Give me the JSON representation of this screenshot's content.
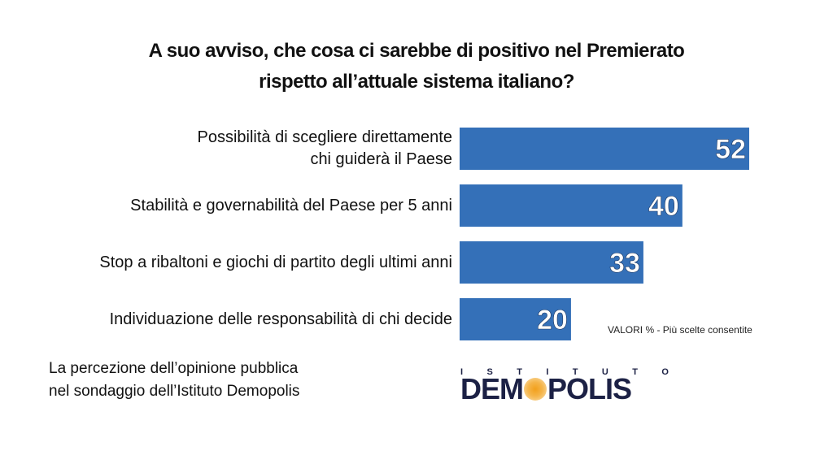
{
  "title": {
    "line1": "A suo avviso, che cosa ci sarebbe di positivo nel Premierato",
    "line2": "rispetto all’attuale sistema italiano?"
  },
  "chart_data": {
    "type": "bar",
    "orientation": "horizontal",
    "categories": [
      [
        "Possibilità di scegliere direttamente",
        "chi guiderà il Paese"
      ],
      [
        "Stabilità e governabilità del Paese per 5 anni"
      ],
      [
        "Stop a ribaltoni e giochi di partito degli ultimi anni"
      ],
      [
        "Individuazione delle responsabilità di chi decide"
      ]
    ],
    "values": [
      52,
      40,
      33,
      20
    ],
    "value_labels": [
      "52",
      "40",
      "33",
      "20"
    ],
    "xlim": [
      0,
      52
    ],
    "bar_color": "#3470b8",
    "label_color": "#ffffff",
    "grid": false
  },
  "note": "VALORI % - Più scelte consentite",
  "footer": {
    "line1": "La percezione dell’opinione pubblica",
    "line2": "nel sondaggio dell’Istituto Demopolis"
  },
  "logo": {
    "top_text": [
      "I",
      "S",
      "T",
      "I",
      "T",
      "U",
      "T",
      "O"
    ],
    "main_before": "DEM",
    "main_after": "POLIS",
    "text_color": "#1c2145",
    "dot_color": "#f2a01c"
  }
}
